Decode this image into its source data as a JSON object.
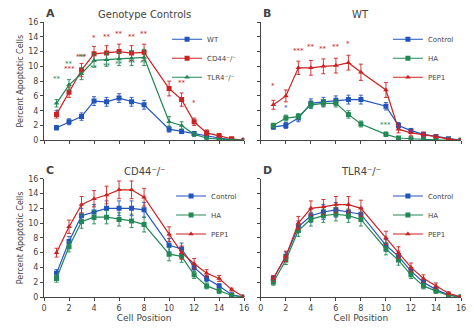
{
  "chart_data": [
    {
      "type": "line",
      "title": "Genotype Controls",
      "label": "A",
      "ylabel": "Percent Apoptotic Cells",
      "x": [
        1,
        2,
        3,
        4,
        5,
        6,
        7,
        8,
        10,
        11,
        12,
        13,
        14,
        15,
        16
      ],
      "series": [
        {
          "name": "WT",
          "color": "#2255bb",
          "marker": "square",
          "values": [
            1.7,
            2.5,
            3.2,
            5.3,
            5.2,
            5.7,
            5.2,
            4.8,
            1.5,
            1.2,
            0.9,
            0.5,
            0.3,
            0.1,
            0.0
          ],
          "err": [
            0.3,
            0.4,
            0.5,
            0.6,
            0.6,
            0.6,
            0.6,
            0.6,
            0.4,
            0.3,
            0.3,
            0.2,
            0.15,
            0.1,
            0.05
          ]
        },
        {
          "name": "CD44⁻/⁻",
          "color": "#cc2222",
          "marker": "square",
          "values": [
            3.5,
            6.5,
            9.5,
            11.7,
            11.8,
            12.0,
            11.8,
            11.9,
            7.0,
            5.5,
            2.5,
            1.0,
            0.6,
            0.2,
            0.0
          ],
          "err": [
            0.5,
            0.7,
            0.9,
            1.0,
            1.0,
            1.0,
            1.0,
            1.1,
            1.0,
            0.9,
            0.5,
            0.4,
            0.3,
            0.2,
            0.05
          ]
        },
        {
          "name": "TLR4⁻/⁻",
          "color": "#228855",
          "marker": "triangle-up",
          "values": [
            5.0,
            7.5,
            9.0,
            10.8,
            10.9,
            11.0,
            11.1,
            11.2,
            2.5,
            2.0,
            0.8,
            0.3,
            0.15,
            0.05,
            0.0
          ],
          "err": [
            0.5,
            0.7,
            0.8,
            0.9,
            0.9,
            0.9,
            1.0,
            1.1,
            0.7,
            0.5,
            0.3,
            0.2,
            0.1,
            0.05,
            0.02
          ]
        }
      ],
      "xlim": [
        0,
        16
      ],
      "ylim": [
        0,
        16
      ],
      "xticks": [
        0,
        2,
        4,
        6,
        8,
        10,
        12,
        14,
        16
      ],
      "yticks": [
        0,
        2,
        4,
        6,
        8,
        10,
        12,
        14,
        16
      ],
      "grid": false,
      "legend": "upper right",
      "tick_labels": "y",
      "annotations": [
        {
          "x": 2,
          "y": 8.8,
          "text": "***",
          "color": "#cc2222"
        },
        {
          "x": 3,
          "y": 10.5,
          "text": "***",
          "color": "#cc2222"
        },
        {
          "x": 4,
          "y": 13.0,
          "text": "*",
          "color": "#cc2222"
        },
        {
          "x": 5,
          "y": 13.2,
          "text": "**",
          "color": "#cc2222"
        },
        {
          "x": 6,
          "y": 13.5,
          "text": "**",
          "color": "#cc2222"
        },
        {
          "x": 7,
          "y": 13.2,
          "text": "**",
          "color": "#cc2222"
        },
        {
          "x": 8,
          "y": 13.5,
          "text": "**",
          "color": "#cc2222"
        },
        {
          "x": 11,
          "y": 7.0,
          "text": "**",
          "color": "#cc2222"
        },
        {
          "x": 12,
          "y": 4.2,
          "text": "*",
          "color": "#cc2222"
        },
        {
          "x": 1,
          "y": 7.5,
          "text": "**",
          "color": "#228855"
        },
        {
          "x": 2,
          "y": 9.5,
          "text": "**",
          "color": "#228855"
        },
        {
          "x": 3,
          "y": 10.5,
          "text": "**",
          "color": "#228855"
        },
        {
          "x": 4,
          "y": 9.0,
          "text": "**",
          "color": "#228855"
        },
        {
          "x": 5,
          "y": 9.2,
          "text": "**",
          "color": "#228855"
        },
        {
          "x": 6,
          "y": 9.5,
          "text": "**",
          "color": "#228855"
        },
        {
          "x": 7,
          "y": 9.6,
          "text": "**",
          "color": "#228855"
        },
        {
          "x": 8,
          "y": 9.6,
          "text": "**",
          "color": "#228855"
        },
        {
          "x": 1,
          "y": 3.0,
          "text": "*",
          "color": "#2255bb"
        }
      ]
    },
    {
      "type": "line",
      "title": "WT",
      "label": "B",
      "x": [
        1,
        2,
        3,
        4,
        5,
        6,
        7,
        8,
        10,
        11,
        12,
        13,
        14,
        15,
        16
      ],
      "series": [
        {
          "name": "Control",
          "color": "#2255bb",
          "marker": "square",
          "values": [
            1.8,
            2.0,
            3.0,
            5.0,
            5.2,
            5.4,
            5.5,
            5.5,
            4.6,
            2.0,
            1.3,
            0.8,
            0.5,
            0.2,
            0.0
          ],
          "err": [
            0.3,
            0.4,
            0.5,
            0.6,
            0.6,
            0.6,
            0.6,
            0.6,
            0.5,
            0.4,
            0.3,
            0.2,
            0.15,
            0.1,
            0.05
          ]
        },
        {
          "name": "HA",
          "color": "#228855",
          "marker": "square",
          "values": [
            2.0,
            3.0,
            3.2,
            4.8,
            5.0,
            5.0,
            3.5,
            2.2,
            0.8,
            0.3,
            0.2,
            0.1,
            0.05,
            0.02,
            0.0
          ],
          "err": [
            0.3,
            0.4,
            0.4,
            0.5,
            0.5,
            0.5,
            0.5,
            0.4,
            0.3,
            0.2,
            0.15,
            0.1,
            0.05,
            0.02,
            0.01
          ]
        },
        {
          "name": "PEP1",
          "color": "#cc2222",
          "marker": "triangle-up",
          "values": [
            4.8,
            6.0,
            9.8,
            9.8,
            10.0,
            10.1,
            10.5,
            9.2,
            6.8,
            1.5,
            1.0,
            0.8,
            0.5,
            0.15,
            0.0
          ],
          "err": [
            0.6,
            0.8,
            0.9,
            1.0,
            1.0,
            1.0,
            1.0,
            1.1,
            1.0,
            0.5,
            0.4,
            0.3,
            0.2,
            0.1,
            0.05
          ]
        }
      ],
      "xlim": [
        0,
        16
      ],
      "ylim": [
        0,
        16
      ],
      "xticks": [
        0,
        2,
        4,
        6,
        8,
        10,
        12,
        14,
        16
      ],
      "yticks": [
        0,
        2,
        4,
        6,
        8,
        10,
        12,
        14,
        16
      ],
      "grid": false,
      "legend": "upper right",
      "tick_labels": false,
      "annotations": [
        {
          "x": 1,
          "y": 6.5,
          "text": "*",
          "color": "#cc2222"
        },
        {
          "x": 3,
          "y": 11.2,
          "text": "***",
          "color": "#cc2222"
        },
        {
          "x": 4,
          "y": 11.8,
          "text": "**",
          "color": "#cc2222"
        },
        {
          "x": 5,
          "y": 11.5,
          "text": "**",
          "color": "#cc2222"
        },
        {
          "x": 6,
          "y": 11.8,
          "text": "**",
          "color": "#cc2222"
        },
        {
          "x": 7,
          "y": 12.2,
          "text": "*",
          "color": "#cc2222"
        },
        {
          "x": 10,
          "y": 1.2,
          "text": "***",
          "color": "#228855"
        },
        {
          "x": 2,
          "y": 3.5,
          "text": "*",
          "color": "#2255bb"
        }
      ]
    },
    {
      "type": "line",
      "title": "CD44⁻/⁻",
      "label": "C",
      "ylabel": "Percent Apoptotic Cells",
      "xlabel": "Cell Position",
      "x": [
        1,
        2,
        3,
        4,
        5,
        6,
        7,
        8,
        10,
        11,
        12,
        13,
        14,
        15,
        16
      ],
      "series": [
        {
          "name": "Control",
          "color": "#2255bb",
          "marker": "square",
          "values": [
            3.2,
            7.5,
            11.0,
            11.5,
            12.0,
            12.0,
            12.0,
            11.8,
            7.0,
            6.5,
            4.0,
            2.5,
            1.5,
            0.3,
            0.0
          ],
          "err": [
            0.5,
            0.7,
            1.0,
            1.0,
            1.0,
            1.0,
            1.0,
            1.0,
            0.9,
            0.8,
            0.5,
            0.4,
            0.3,
            0.15,
            0.05
          ]
        },
        {
          "name": "HA",
          "color": "#228855",
          "marker": "square",
          "values": [
            2.5,
            6.8,
            10.2,
            10.8,
            10.8,
            10.5,
            10.3,
            9.8,
            5.8,
            5.5,
            3.0,
            1.5,
            0.8,
            0.2,
            0.0
          ],
          "err": [
            0.5,
            0.7,
            0.9,
            0.9,
            0.9,
            0.9,
            0.9,
            1.0,
            0.9,
            0.8,
            0.5,
            0.4,
            0.3,
            0.15,
            0.05
          ]
        },
        {
          "name": "PEP1",
          "color": "#cc2222",
          "marker": "triangle-up",
          "values": [
            6.0,
            9.5,
            12.5,
            13.3,
            13.8,
            14.5,
            14.5,
            13.5,
            8.5,
            6.0,
            4.5,
            3.2,
            2.5,
            1.0,
            0.0
          ],
          "err": [
            0.6,
            0.9,
            1.1,
            1.1,
            1.2,
            1.2,
            1.2,
            1.2,
            1.0,
            0.9,
            0.7,
            0.5,
            0.4,
            0.2,
            0.05
          ]
        }
      ],
      "xlim": [
        0,
        16
      ],
      "ylim": [
        0,
        16
      ],
      "xticks": [
        0,
        2,
        4,
        6,
        8,
        10,
        12,
        14,
        16
      ],
      "yticks": [
        0,
        2,
        4,
        6,
        8,
        10,
        12,
        14,
        16
      ],
      "grid": false,
      "legend": "upper right",
      "tick_labels": true
    },
    {
      "type": "line",
      "title": "TLR4⁻/⁻",
      "label": "D",
      "xlabel": "Cell Position",
      "x": [
        1,
        2,
        3,
        4,
        5,
        6,
        7,
        8,
        10,
        11,
        12,
        13,
        14,
        15,
        16
      ],
      "series": [
        {
          "name": "Control",
          "color": "#2255bb",
          "marker": "square",
          "values": [
            2.5,
            5.5,
            9.5,
            11.0,
            11.5,
            11.8,
            11.5,
            11.2,
            7.0,
            5.5,
            3.5,
            2.0,
            1.0,
            0.3,
            0.0
          ],
          "err": [
            0.4,
            0.6,
            0.8,
            0.9,
            1.0,
            1.0,
            0.9,
            0.9,
            0.8,
            0.7,
            0.5,
            0.4,
            0.3,
            0.15,
            0.05
          ]
        },
        {
          "name": "HA",
          "color": "#228855",
          "marker": "square",
          "values": [
            2.0,
            5.0,
            9.0,
            10.5,
            11.0,
            11.2,
            11.0,
            10.5,
            6.5,
            5.0,
            3.0,
            1.5,
            0.8,
            0.2,
            0.0
          ],
          "err": [
            0.4,
            0.6,
            0.8,
            0.9,
            0.9,
            0.9,
            0.9,
            0.9,
            0.8,
            0.7,
            0.5,
            0.4,
            0.3,
            0.15,
            0.05
          ]
        },
        {
          "name": "PEP1",
          "color": "#cc2222",
          "marker": "triangle-up",
          "values": [
            2.5,
            5.5,
            10.0,
            12.0,
            12.2,
            12.5,
            12.5,
            12.0,
            8.0,
            6.0,
            4.0,
            2.5,
            1.5,
            0.5,
            0.0
          ],
          "err": [
            0.4,
            0.7,
            0.9,
            1.0,
            1.0,
            1.1,
            1.1,
            1.1,
            0.9,
            0.8,
            0.6,
            0.5,
            0.4,
            0.2,
            0.05
          ]
        }
      ],
      "xlim": [
        0,
        16
      ],
      "ylim": [
        0,
        16
      ],
      "xticks": [
        0,
        2,
        4,
        6,
        8,
        10,
        12,
        14,
        16
      ],
      "yticks": [
        0,
        2,
        4,
        6,
        8,
        10,
        12,
        14,
        16
      ],
      "grid": false,
      "legend": "upper right",
      "tick_labels": "x"
    }
  ]
}
